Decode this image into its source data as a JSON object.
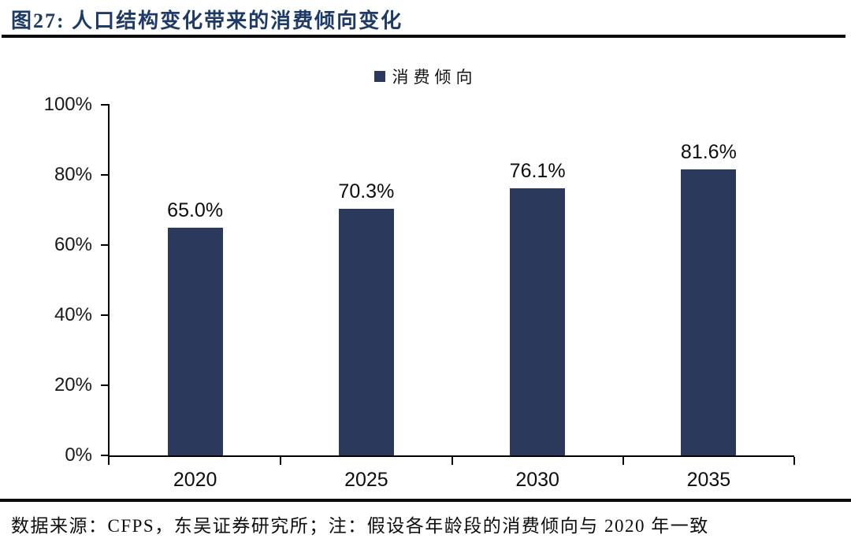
{
  "title": "图27:  人口结构变化带来的消费倾向变化",
  "legend": {
    "label": "消费倾向"
  },
  "footer": "数据来源：CFPS，东吴证券研究所；注：假设各年龄段的消费倾向与 2020 年一致",
  "colors": {
    "bar": "#2b3a5c",
    "title": "#1e3a66",
    "axis": "#000000",
    "rule": "#0a0a0a"
  },
  "chart_data": {
    "type": "bar",
    "title": "图27: 人口结构变化带来的消费倾向变化",
    "series_name": "消费倾向",
    "categories": [
      "2020",
      "2025",
      "2030",
      "2035"
    ],
    "values": [
      65.0,
      70.3,
      76.1,
      81.6
    ],
    "value_labels": [
      "65.0%",
      "70.3%",
      "76.1%",
      "81.6%"
    ],
    "xlabel": "",
    "ylabel": "",
    "ylim": [
      0,
      100
    ],
    "y_ticks": [
      "100%",
      "80%",
      "60%",
      "40%",
      "20%",
      "0%"
    ],
    "grid": false,
    "legend_position": "top-center"
  }
}
